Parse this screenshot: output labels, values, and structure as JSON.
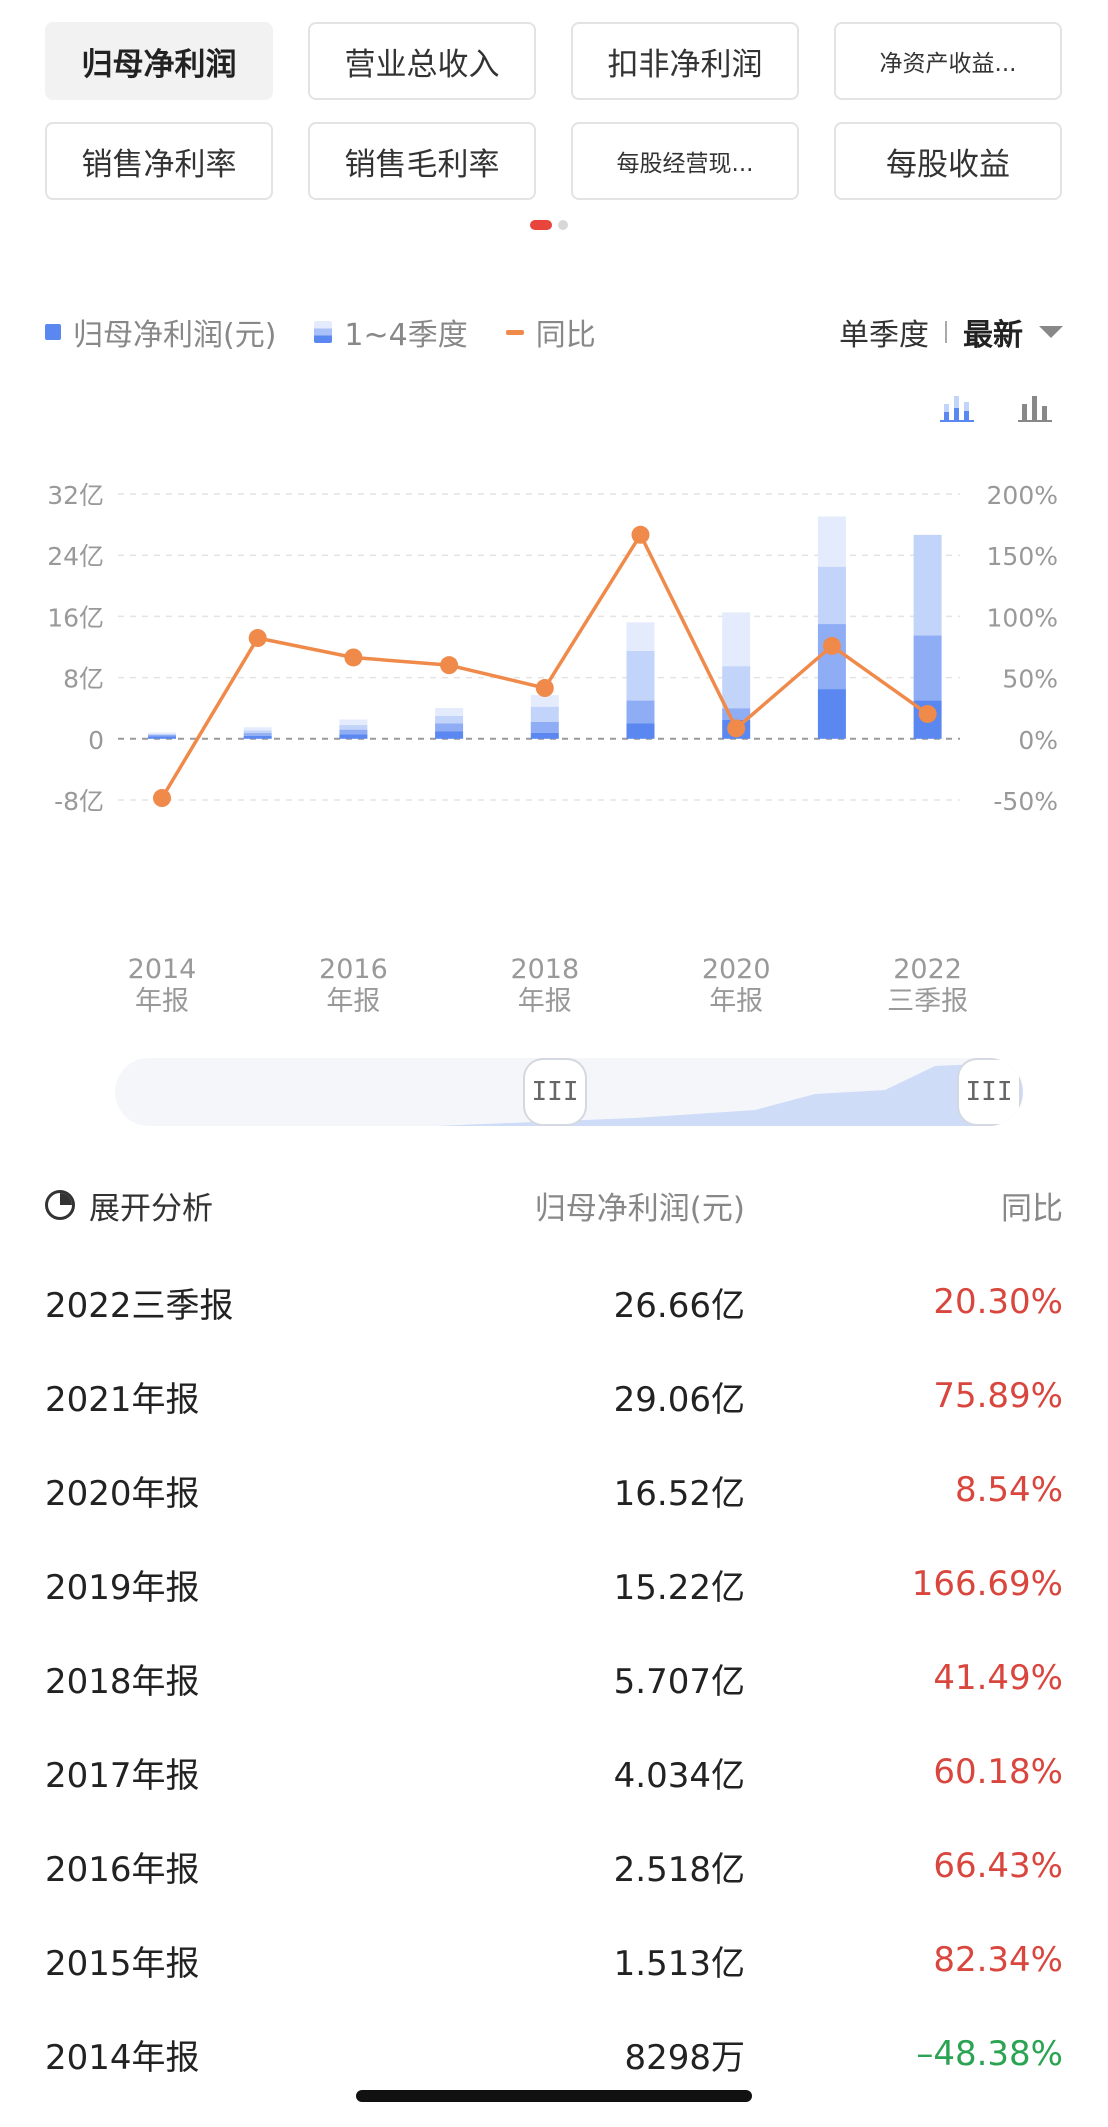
{
  "tabs": [
    {
      "label": "归母净利润",
      "active": true,
      "small": false
    },
    {
      "label": "营业总收入",
      "active": false,
      "small": false
    },
    {
      "label": "扣非净利润",
      "active": false,
      "small": false
    },
    {
      "label": "净资产收益...",
      "active": false,
      "small": true
    },
    {
      "label": "销售净利率",
      "active": false,
      "small": false
    },
    {
      "label": "销售毛利率",
      "active": false,
      "small": false
    },
    {
      "label": "每股经营现...",
      "active": false,
      "small": true
    },
    {
      "label": "每股收益",
      "active": false,
      "small": false
    }
  ],
  "legend": {
    "net_profit": "归母净利润(元)",
    "quarters": "1~4季度",
    "yoy": "同比",
    "period": "单季度",
    "latest": "最新"
  },
  "colors": {
    "bar_q4": "#e3ebfd",
    "bar_q3": "#c3d4fa",
    "bar_q2": "#8fadf5",
    "bar_q1": "#5b87f0",
    "line": "#f08a4b",
    "positive": "#d9463e",
    "negative": "#2aa352"
  },
  "chart_data": {
    "type": "bar+line",
    "categories": [
      "2014年报",
      "2015年报",
      "2016年报",
      "2017年报",
      "2018年报",
      "2019年报",
      "2020年报",
      "2021年报",
      "2022三季报"
    ],
    "x_tick_labels": [
      {
        "index": 0,
        "line1": "2014",
        "line2": "年报"
      },
      {
        "index": 2,
        "line1": "2016",
        "line2": "年报"
      },
      {
        "index": 4,
        "line1": "2018",
        "line2": "年报"
      },
      {
        "index": 6,
        "line1": "2020",
        "line2": "年报"
      },
      {
        "index": 8,
        "line1": "2022",
        "line2": "三季报"
      }
    ],
    "left_axis": {
      "unit": "亿",
      "range": [
        -8,
        32
      ],
      "ticks": [
        "32亿",
        "24亿",
        "16亿",
        "8亿",
        "0",
        "-8亿"
      ],
      "tick_values": [
        32,
        24,
        16,
        8,
        0,
        -8
      ]
    },
    "right_axis": {
      "range": [
        -50,
        200
      ],
      "ticks": [
        "200%",
        "150%",
        "100%",
        "50%",
        "0%",
        "-50%"
      ],
      "tick_values": [
        200,
        150,
        100,
        50,
        0,
        -50
      ]
    },
    "bar_quarter_stacks": [
      [
        0.3,
        0.2,
        0.15,
        0.18
      ],
      [
        0.4,
        0.35,
        0.35,
        0.41
      ],
      [
        0.6,
        0.6,
        0.6,
        0.72
      ],
      [
        1.0,
        1.0,
        1.0,
        1.03
      ],
      [
        0.8,
        1.4,
        2.0,
        1.51
      ],
      [
        2.0,
        3.0,
        6.5,
        3.72
      ],
      [
        2.5,
        1.5,
        5.5,
        7.02
      ],
      [
        6.5,
        8.5,
        7.5,
        6.56
      ],
      [
        5.0,
        8.5,
        13.16
      ]
    ],
    "bar_totals": [
      0.8298,
      1.513,
      2.518,
      4.034,
      5.707,
      15.22,
      16.52,
      29.06,
      26.66
    ],
    "yoy_percent": [
      -48.38,
      82.34,
      66.43,
      60.18,
      41.49,
      166.69,
      8.54,
      75.89,
      20.3
    ],
    "grid": true
  },
  "table": {
    "header": {
      "expand": "展开分析",
      "col_value": "归母净利润(元)",
      "col_yoy": "同比"
    },
    "rows": [
      {
        "period": "2022三季报",
        "value": "26.66亿",
        "yoy": "20.30%",
        "positive": true
      },
      {
        "period": "2021年报",
        "value": "29.06亿",
        "yoy": "75.89%",
        "positive": true
      },
      {
        "period": "2020年报",
        "value": "16.52亿",
        "yoy": "8.54%",
        "positive": true
      },
      {
        "period": "2019年报",
        "value": "15.22亿",
        "yoy": "166.69%",
        "positive": true
      },
      {
        "period": "2018年报",
        "value": "5.707亿",
        "yoy": "41.49%",
        "positive": true
      },
      {
        "period": "2017年报",
        "value": "4.034亿",
        "yoy": "60.18%",
        "positive": true
      },
      {
        "period": "2016年报",
        "value": "2.518亿",
        "yoy": "66.43%",
        "positive": true
      },
      {
        "period": "2015年报",
        "value": "1.513亿",
        "yoy": "82.34%",
        "positive": true
      },
      {
        "period": "2014年报",
        "value": "8298万",
        "yoy": "–48.38%",
        "positive": false
      }
    ]
  },
  "slider": {
    "handle_glyph": "III",
    "range_start_fraction": 0.5,
    "range_end_fraction": 1.0
  }
}
